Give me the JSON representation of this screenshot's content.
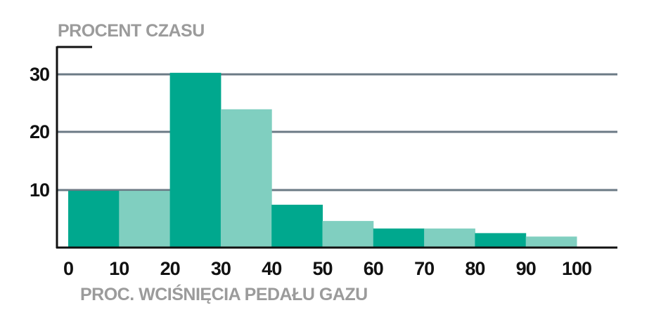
{
  "chart_data": {
    "type": "bar",
    "ylabel": "PROCENT CZASU",
    "xlabel": "PROC. WCIŚNIĘCIA PEDAŁU GAZU",
    "x_ticks": [
      "0",
      "10",
      "20",
      "30",
      "40",
      "50",
      "60",
      "70",
      "80",
      "90",
      "100"
    ],
    "y_ticks": [
      "10",
      "20",
      "30"
    ],
    "ylim": [
      0,
      35
    ],
    "grid": true,
    "bins": [
      {
        "from": 0,
        "to": 10,
        "value": 9.8
      },
      {
        "from": 10,
        "to": 20,
        "value": 9.8
      },
      {
        "from": 20,
        "to": 30,
        "value": 30.2
      },
      {
        "from": 30,
        "to": 40,
        "value": 23.9
      },
      {
        "from": 40,
        "to": 50,
        "value": 7.4
      },
      {
        "from": 50,
        "to": 60,
        "value": 4.6
      },
      {
        "from": 60,
        "to": 70,
        "value": 3.3
      },
      {
        "from": 70,
        "to": 80,
        "value": 3.3
      },
      {
        "from": 80,
        "to": 90,
        "value": 2.5
      },
      {
        "from": 90,
        "to": 100,
        "value": 1.9
      }
    ],
    "colors": {
      "dark_bar": "#00a88e",
      "light_bar": "#80cfc0",
      "gridline": "#6b7a85",
      "axis": "#111111",
      "tick_text": "#111111",
      "label_text": "#9b9b9b"
    }
  }
}
